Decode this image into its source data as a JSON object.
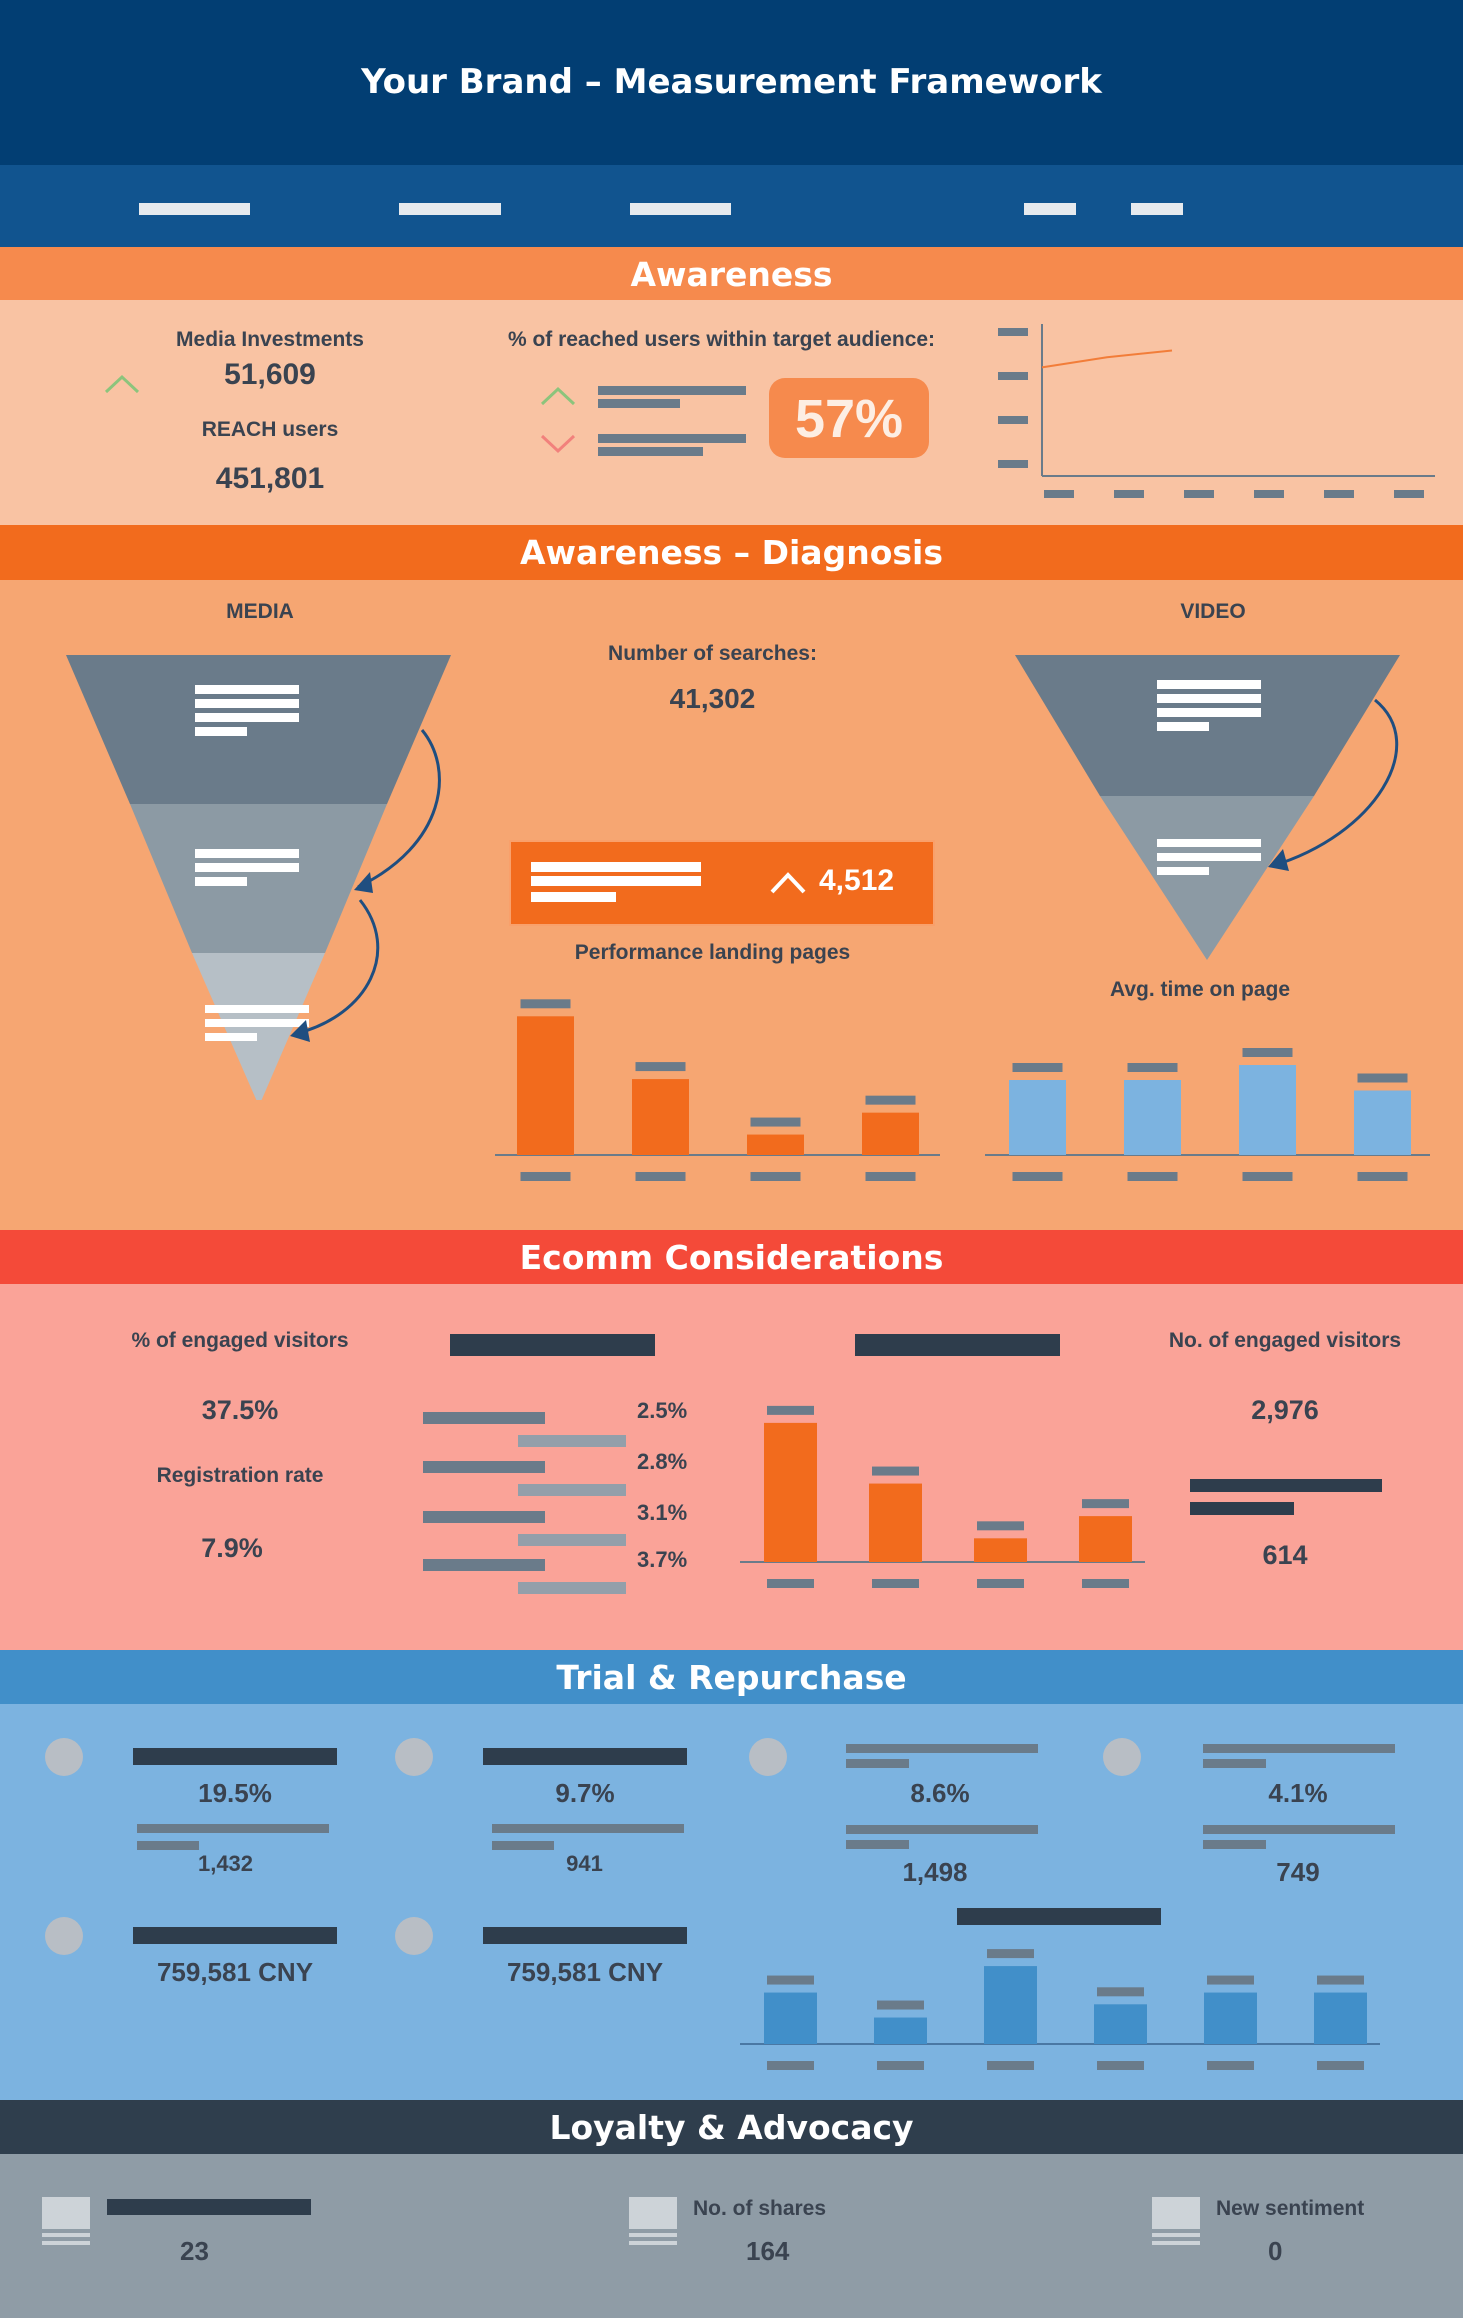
{
  "header": {
    "title": "Your Brand – Measurement Framework"
  },
  "sections": {
    "awareness": "Awareness",
    "diagnosis": "Awareness – Diagnosis",
    "ecomm": "Ecomm Considerations",
    "trial": "Trial & Repurchase",
    "loyalty": "Loyalty & Advocacy"
  },
  "awareness": {
    "media_investments_label": "Media Investments",
    "media_investments_value": "51,609",
    "reach_label": "REACH users",
    "reach_value": "451,801",
    "reached_label": "% of reached users within target audience:",
    "reached_value": "57%"
  },
  "diagnosis": {
    "media_label": "MEDIA",
    "video_label": "VIDEO",
    "searches_label": "Number of searches:",
    "searches_value": "41,302",
    "highlight_value": "4,512",
    "landing_label": "Performance landing pages",
    "time_label": "Avg. time on page"
  },
  "ecomm": {
    "engaged_pct_label": "% of engaged visitors",
    "engaged_pct_value": "37.5%",
    "registration_label": "Registration rate",
    "registration_value": "7.9%",
    "engaged_no_label": "No. of engaged visitors",
    "engaged_no_value": "2,976",
    "second_value": "614",
    "rates": [
      "2.5%",
      "2.8%",
      "3.1%",
      "3.7%"
    ]
  },
  "trial": {
    "m1_pct": "19.5%",
    "m1_val": "1,432",
    "m2_pct": "9.7%",
    "m2_val": "941",
    "m3_pct": "8.6%",
    "m3_val": "1,498",
    "m4_pct": "4.1%",
    "m4_val": "749",
    "cny1": "759,581 CNY",
    "cny2": "759,581 CNY"
  },
  "loyalty": {
    "v1": "23",
    "shares_label": "No. of shares",
    "shares_value": "164",
    "sentiment_label": "New sentiment",
    "sentiment_value": "0"
  },
  "colors": {
    "navy": "#023e73",
    "blue_bar": "#11548f",
    "orange_light": "#f68a4d",
    "orange_dark": "#f26b1d",
    "red": "#f44a39",
    "trial": "#418fc9",
    "trial_bg": "#7cb3e0",
    "loyalty": "#2f3e4d",
    "loyalty_bg": "#8f9ca6"
  },
  "chart_data": [
    {
      "type": "line",
      "series": [
        {
          "values": [
            3.2,
            3.5,
            3.7
          ]
        }
      ]
    },
    {
      "type": "bar",
      "values": [
        9.5,
        5.2,
        1.4,
        2.9
      ]
    },
    {
      "type": "bar",
      "values": [
        5,
        5,
        6,
        4.3
      ]
    },
    {
      "type": "bar",
      "values": [
        9.4,
        5.3,
        1.6,
        3.1
      ]
    },
    {
      "type": "bar",
      "values": [
        3.5,
        1.8,
        5.3,
        2.7,
        3.5,
        3.5
      ]
    }
  ]
}
